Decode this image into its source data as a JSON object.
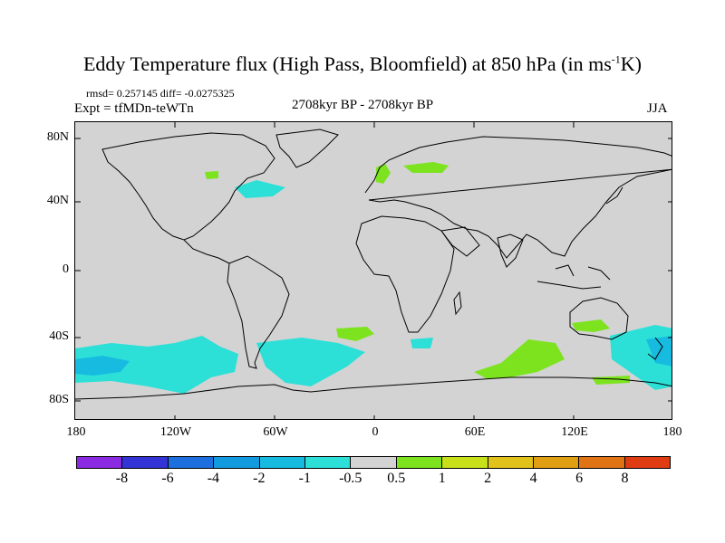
{
  "title": {
    "main": "Eddy Temperature flux (High Pass, Bloomfield) at 850 hPa (in ms",
    "sup": "-1",
    "tail": "K)"
  },
  "stats": "rmsd= 0.257145 diff= -0.0275325",
  "expt": "Expt = tfMDn-teWTn",
  "period": "2708kyr BP - 2708kyr BP",
  "season": "JJA",
  "map": {
    "background_color": "#d3d3d3",
    "y_ticks": [
      "80N",
      "40N",
      "0",
      "40S",
      "80S"
    ],
    "x_ticks": [
      "180",
      "120W",
      "60W",
      "0",
      "60E",
      "120E",
      "180"
    ]
  },
  "colorbar": {
    "colors": [
      "#8a2be2",
      "#3333d6",
      "#1c6fdc",
      "#129adf",
      "#17bbe0",
      "#2ce0d8",
      "#d3d3d3",
      "#7de31e",
      "#c8e01a",
      "#e0c21a",
      "#e09e12",
      "#e07414",
      "#e03c14"
    ],
    "labels": [
      "-8",
      "-6",
      "-4",
      "-2",
      "-1",
      "-0.5",
      "0.5",
      "1",
      "2",
      "4",
      "6",
      "8"
    ]
  }
}
